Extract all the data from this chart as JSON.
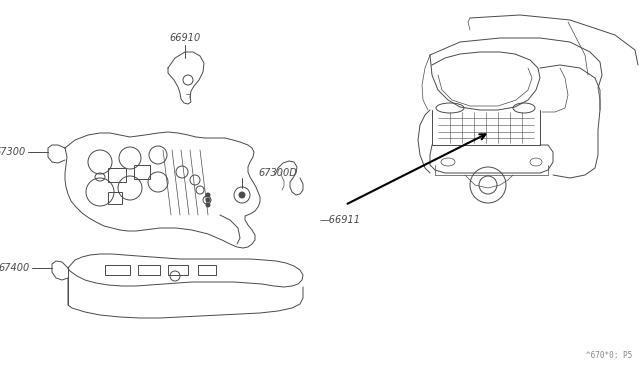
{
  "bg_color": "#ffffff",
  "line_color": "#4a4a4a",
  "watermark": "^670*0: P5",
  "fig_w": 6.4,
  "fig_h": 3.72,
  "dpi": 100
}
